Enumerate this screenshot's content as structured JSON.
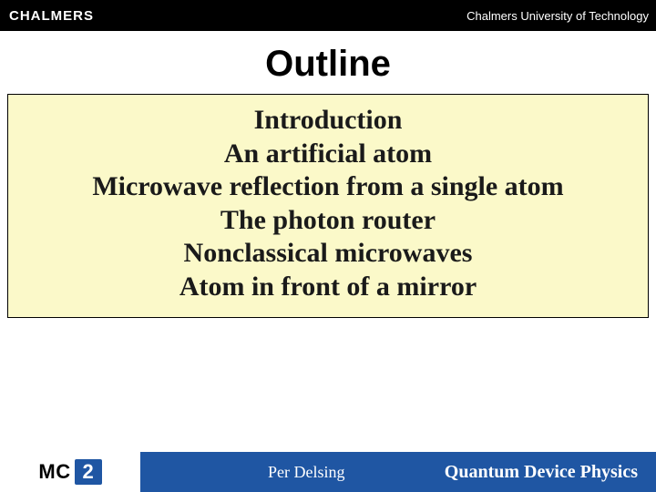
{
  "header": {
    "logo_text": "CHALMERS",
    "university": "Chalmers University of Technology",
    "bg_color": "#000000",
    "text_color": "#ffffff"
  },
  "title": "Outline",
  "outline": {
    "bg_color": "#fbf9c9",
    "border_color": "#000000",
    "font_family": "Times New Roman",
    "font_weight": 700,
    "font_size_pt": 22,
    "items": [
      "Introduction",
      "An artificial atom",
      "Microwave reflection from a single atom",
      "The photon router",
      "Nonclassical microwaves",
      "Atom in front of a mirror"
    ]
  },
  "footer": {
    "logo_prefix": "MC",
    "logo_suffix": "2",
    "presenter": "Per Delsing",
    "group": "Quantum Device Physics",
    "bar_color": "#1f56a3",
    "text_color": "#ffffff"
  }
}
